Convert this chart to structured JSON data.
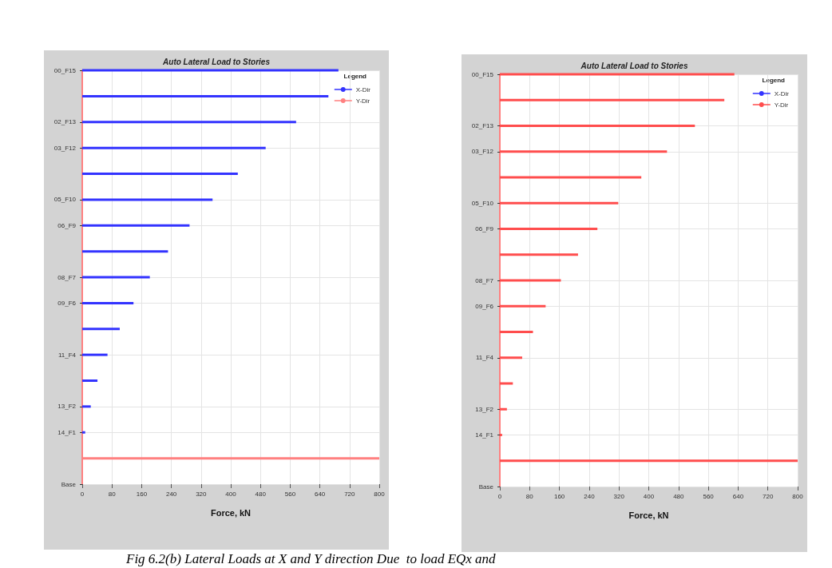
{
  "chart_data": [
    {
      "type": "bar",
      "orientation": "horizontal",
      "title": "Auto Lateral Load to Stories",
      "xlabel": "Force, kN",
      "legend_title": "Legend",
      "legend": "top right",
      "grid": true,
      "categories": [
        "00_F15",
        null,
        "02_F13",
        "03_F12",
        null,
        "05_F10",
        "06_F9",
        null,
        "08_F7",
        "09_F6",
        null,
        "11_F4",
        null,
        "13_F2",
        "14_F1",
        null,
        "Base"
      ],
      "series": [
        {
          "name": "X-Dir",
          "color": "#3333ff",
          "values": [
            690,
            663,
            576,
            494,
            419,
            351,
            289,
            231,
            182,
            138,
            101,
            68,
            41,
            23,
            8,
            null,
            null
          ]
        },
        {
          "name": "Y-Dir",
          "color": "#ff8080",
          "values": [
            null,
            null,
            null,
            null,
            null,
            null,
            null,
            null,
            null,
            null,
            null,
            null,
            null,
            null,
            null,
            800,
            null
          ]
        }
      ],
      "xlim": [
        0,
        800
      ],
      "xticks": [
        0,
        80,
        160,
        240,
        320,
        400,
        480,
        560,
        640,
        720,
        800
      ],
      "annotations": [
        "Fig 6.2(b) Lateral Loads at X and Y direction Due  to load EQx and"
      ]
    },
    {
      "type": "bar",
      "orientation": "horizontal",
      "title": "Auto Lateral Load to Stories",
      "xlabel": "Force, kN",
      "legend_title": "Legend",
      "legend": "top right",
      "grid": true,
      "categories": [
        "00_F15",
        null,
        "02_F13",
        "03_F12",
        null,
        "05_F10",
        "06_F9",
        null,
        "08_F7",
        "09_F6",
        null,
        "11_F4",
        null,
        "13_F2",
        "14_F1",
        null,
        "Base"
      ],
      "series": [
        {
          "name": "X-Dir",
          "color": "#3333ff",
          "values": [
            null,
            null,
            null,
            null,
            null,
            null,
            null,
            null,
            null,
            null,
            null,
            null,
            null,
            null,
            null,
            null,
            null
          ]
        },
        {
          "name": "Y-Dir",
          "color": "#ff4d4d",
          "values": [
            630,
            603,
            524,
            449,
            380,
            318,
            262,
            210,
            164,
            123,
            89,
            60,
            35,
            19,
            6,
            800,
            null
          ]
        }
      ],
      "xlim": [
        0,
        800
      ],
      "xticks": [
        0,
        80,
        160,
        240,
        320,
        400,
        480,
        560,
        640,
        720,
        800
      ]
    }
  ]
}
